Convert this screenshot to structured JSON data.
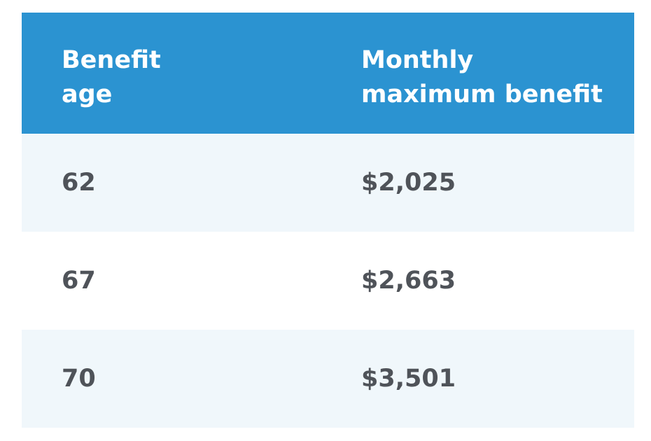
{
  "table": {
    "headers": [
      "Benefit\nage",
      "Monthly\nmaximum benefit"
    ],
    "rows": [
      {
        "age": "62",
        "benefit": "$2,025"
      },
      {
        "age": "67",
        "benefit": "$2,663"
      },
      {
        "age": "70",
        "benefit": "$3,501"
      }
    ]
  },
  "colors": {
    "header_bg": "#2b93d1",
    "header_text": "#ffffff",
    "row_shaded": "#f0f7fb",
    "row_plain": "#ffffff",
    "cell_text": "#4f5359"
  }
}
